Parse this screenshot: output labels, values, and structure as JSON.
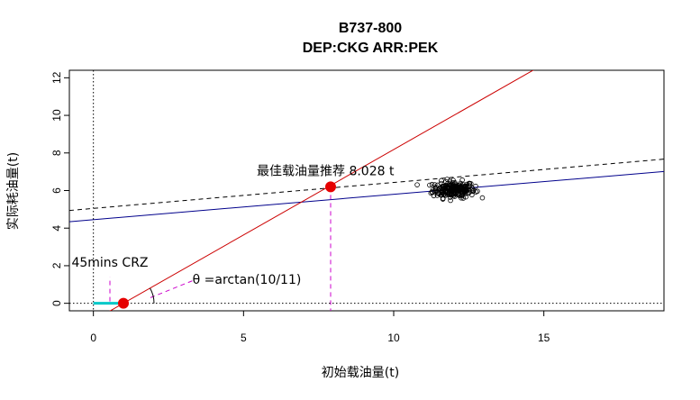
{
  "chart_data": {
    "type": "scatter",
    "title": "B737-800",
    "subtitle": "DEP:CKG ARR:PEK",
    "xlabel": "初始载油量(t)",
    "ylabel": "实际耗油量(t)",
    "xlim": [
      -0.8,
      19
    ],
    "ylim": [
      -0.4,
      12.4
    ],
    "x_ticks": [
      0,
      5,
      10,
      15
    ],
    "y_ticks": [
      0,
      2,
      4,
      6,
      8,
      10,
      12
    ],
    "grid": false,
    "lines": [
      {
        "name": "",
        "kind": "fit",
        "color": "#00008b",
        "dash": "solid",
        "intercept": 4.45,
        "slope": 0.135
      },
      {
        "name": "",
        "kind": "fit-upper",
        "color": "#000000",
        "dash": "dashed",
        "intercept": 5.05,
        "slope": 0.138
      },
      {
        "name": "",
        "kind": "theta-line",
        "color": "#cc0000",
        "dash": "solid",
        "intercept": -0.909,
        "slope": 0.909
      },
      {
        "name": "",
        "kind": "zero-y",
        "color": "#000000",
        "dash": "dotted",
        "h": 0
      },
      {
        "name": "",
        "kind": "zero-x",
        "color": "#000000",
        "dash": "dotted",
        "v": 0
      }
    ],
    "points": [
      {
        "x": 7.9,
        "y": 6.2,
        "color": "#e60000"
      },
      {
        "x": 1.0,
        "y": 0.0,
        "color": "#e60000"
      }
    ],
    "scatter_cluster": {
      "x_mean": 12.0,
      "x_sd": 0.35,
      "y_mean": 6.05,
      "y_sd": 0.22,
      "n": 220
    },
    "crz_segment": {
      "x0": 0.0,
      "x1": 1.0,
      "y": 0.0,
      "color": "#00c8c8"
    },
    "annotations": {
      "recommend": "最佳载油量推荐 8.028 t",
      "crz": "45mins CRZ",
      "theta": "θ =arctan(10/11)"
    }
  }
}
